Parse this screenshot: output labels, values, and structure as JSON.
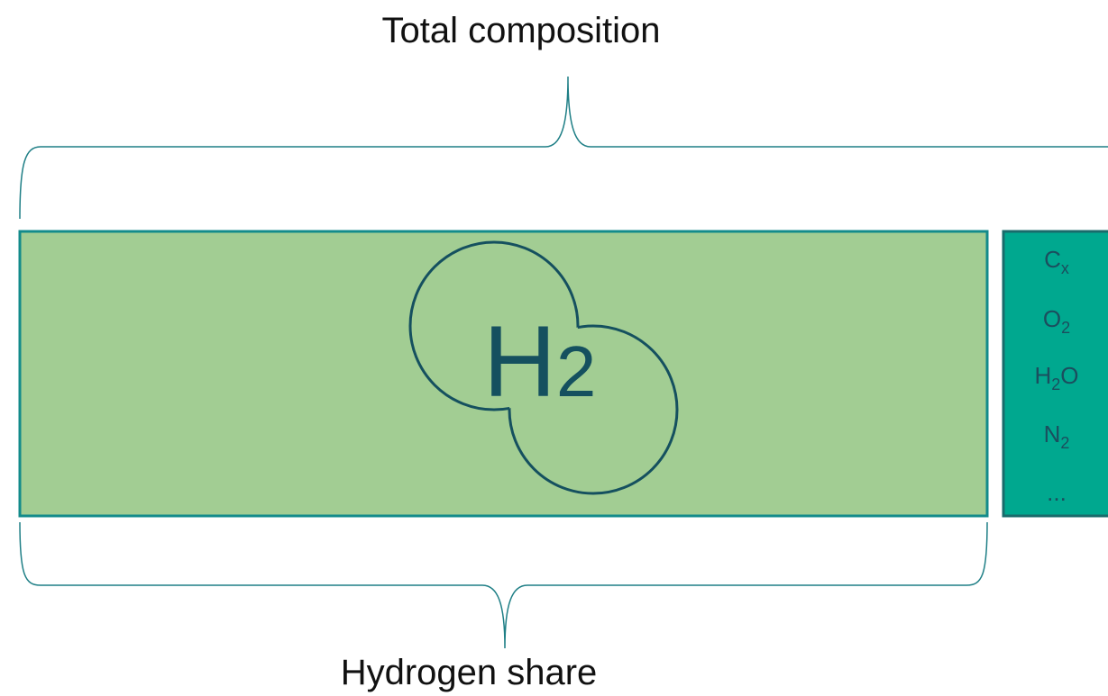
{
  "title": "Total composition",
  "hydrogen_label": "Hydrogen share",
  "molecule": {
    "symbol": "H",
    "count": "2"
  },
  "other_components": [
    [
      {
        "text": "C"
      },
      {
        "sub": "x"
      }
    ],
    [
      {
        "text": "O"
      },
      {
        "sub": "2"
      }
    ],
    [
      {
        "text": "H"
      },
      {
        "sub": "2"
      },
      {
        "text": "O"
      }
    ],
    [
      {
        "text": "N"
      },
      {
        "sub": "2"
      }
    ],
    [
      {
        "text": "..."
      }
    ]
  ]
}
